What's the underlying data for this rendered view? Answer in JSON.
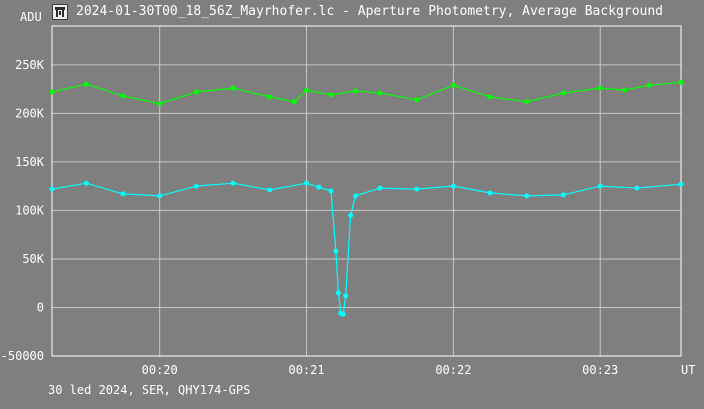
{
  "window": {
    "title": "2024-01-30T00_18_56Z_Mayrhofer.lc - Aperture Photometry, Average Background",
    "icon": "photometry-app-icon"
  },
  "footer": {
    "text": "30 led 2024, SER, QHY174-GPS"
  },
  "colors": {
    "background": "#7f7f7f",
    "grid": "#c8c8c8",
    "frame": "#ffffff",
    "text": "#ffffff",
    "aperture": "#00ff00",
    "background_series": "#00ffff"
  },
  "chart_data": {
    "type": "line",
    "title": "",
    "xlabel": "UT",
    "ylabel": "ADU",
    "ylim": [
      -50000,
      290000
    ],
    "xlim": [
      "00:19:16",
      "00:23:33"
    ],
    "grid": true,
    "y_ticks": [
      {
        "value": 250000,
        "label": "250K"
      },
      {
        "value": 200000,
        "label": "200K"
      },
      {
        "value": 150000,
        "label": "150K"
      },
      {
        "value": 100000,
        "label": "100K"
      },
      {
        "value": 50000,
        "label": "50K"
      },
      {
        "value": 0,
        "label": "0"
      },
      {
        "value": -50000,
        "label": "-50000"
      }
    ],
    "x_ticks": [
      {
        "value": "00:20:00",
        "label": "00:20"
      },
      {
        "value": "00:21:00",
        "label": "00:21"
      },
      {
        "value": "00:22:00",
        "label": "00:22"
      },
      {
        "value": "00:23:00",
        "label": "00:23"
      }
    ],
    "series": [
      {
        "color": "#00ff00",
        "x": [
          "00:19:16",
          "00:19:30",
          "00:19:45",
          "00:20:00",
          "00:20:15",
          "00:20:30",
          "00:20:45",
          "00:20:55",
          "00:21:00",
          "00:21:10",
          "00:21:20",
          "00:21:30",
          "00:21:45",
          "00:22:00",
          "00:22:15",
          "00:22:30",
          "00:22:45",
          "00:23:00",
          "00:23:10",
          "00:23:20",
          "00:23:33"
        ],
        "values": [
          222000,
          230000,
          218000,
          210000,
          222000,
          226000,
          217000,
          212000,
          224000,
          219000,
          223000,
          221000,
          214000,
          229000,
          217000,
          212000,
          221000,
          226000,
          224000,
          229000,
          232000
        ]
      },
      {
        "color": "#00ffff",
        "x": [
          "00:19:16",
          "00:19:30",
          "00:19:45",
          "00:20:00",
          "00:20:15",
          "00:20:30",
          "00:20:45",
          "00:21:00",
          "00:21:05",
          "00:21:10",
          "00:21:12",
          "00:21:13",
          "00:21:14",
          "00:21:15",
          "00:21:16",
          "00:21:18",
          "00:21:20",
          "00:21:30",
          "00:21:45",
          "00:22:00",
          "00:22:15",
          "00:22:30",
          "00:22:45",
          "00:23:00",
          "00:23:15",
          "00:23:33"
        ],
        "values": [
          122000,
          128000,
          117000,
          115000,
          125000,
          128000,
          121000,
          128000,
          124000,
          120000,
          58000,
          15000,
          -6000,
          -7000,
          12000,
          95000,
          115000,
          123000,
          122000,
          125000,
          118000,
          115000,
          116000,
          125000,
          123000,
          127000
        ]
      }
    ]
  }
}
